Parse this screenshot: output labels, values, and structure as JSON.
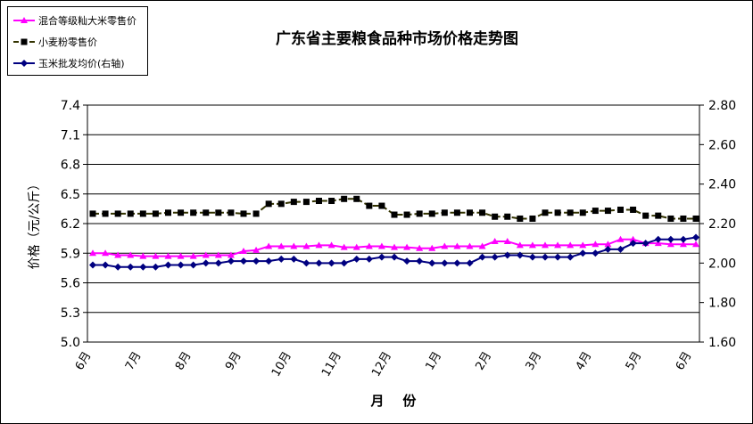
{
  "chart_data": {
    "type": "line",
    "title": "广东省主要粮食品种市场价格走势图",
    "xlabel": "月    份",
    "ylabel": "价格（元/公斤）",
    "ylim": [
      5.0,
      7.4
    ],
    "y2lim": [
      1.6,
      2.8
    ],
    "yticks": [
      "5.0",
      "5.3",
      "5.6",
      "5.9",
      "6.2",
      "6.5",
      "6.8",
      "7.1",
      "7.4"
    ],
    "y2ticks": [
      "1.60",
      "1.80",
      "2.00",
      "2.20",
      "2.40",
      "2.60",
      "2.80"
    ],
    "month_labels": [
      "6月",
      "7月",
      "8月",
      "9月",
      "10月",
      "11月",
      "12月",
      "1月",
      "2月",
      "3月",
      "4月",
      "5月",
      "6月"
    ],
    "grid": true,
    "legend_position": "top-left",
    "series": [
      {
        "name": "混合等级籼大米零售价",
        "axis": "left",
        "color": "#ff00ff",
        "marker": "triangle",
        "values": [
          5.9,
          5.9,
          5.88,
          5.88,
          5.87,
          5.87,
          5.87,
          5.87,
          5.87,
          5.88,
          5.88,
          5.88,
          5.92,
          5.93,
          5.97,
          5.97,
          5.97,
          5.97,
          5.98,
          5.98,
          5.96,
          5.96,
          5.97,
          5.97,
          5.96,
          5.96,
          5.95,
          5.95,
          5.97,
          5.97,
          5.97,
          5.97,
          6.02,
          6.02,
          5.98,
          5.98,
          5.98,
          5.98,
          5.98,
          5.98,
          5.99,
          5.99,
          6.04,
          6.04,
          6.0,
          6.0,
          5.99,
          5.99,
          5.99
        ]
      },
      {
        "name": "小麦粉零售价",
        "axis": "left",
        "color": "#333300",
        "marker": "square",
        "values": [
          6.3,
          6.3,
          6.3,
          6.3,
          6.3,
          6.3,
          6.31,
          6.31,
          6.31,
          6.31,
          6.31,
          6.31,
          6.3,
          6.3,
          6.4,
          6.4,
          6.42,
          6.42,
          6.43,
          6.43,
          6.45,
          6.45,
          6.38,
          6.38,
          6.29,
          6.29,
          6.3,
          6.3,
          6.31,
          6.31,
          6.31,
          6.31,
          6.27,
          6.27,
          6.25,
          6.25,
          6.31,
          6.31,
          6.31,
          6.31,
          6.33,
          6.33,
          6.34,
          6.34,
          6.28,
          6.28,
          6.25,
          6.25,
          6.25
        ]
      },
      {
        "name": "玉米批发均价(右轴)",
        "axis": "right",
        "color": "#000080",
        "marker": "diamond",
        "values": [
          1.99,
          1.99,
          1.98,
          1.98,
          1.98,
          1.98,
          1.99,
          1.99,
          1.99,
          2.0,
          2.0,
          2.01,
          2.01,
          2.01,
          2.01,
          2.02,
          2.02,
          2.0,
          2.0,
          2.0,
          2.0,
          2.02,
          2.02,
          2.03,
          2.03,
          2.01,
          2.01,
          2.0,
          2.0,
          2.0,
          2.0,
          2.03,
          2.03,
          2.04,
          2.04,
          2.03,
          2.03,
          2.03,
          2.03,
          2.05,
          2.05,
          2.07,
          2.07,
          2.1,
          2.1,
          2.12,
          2.12,
          2.12,
          2.13
        ]
      }
    ]
  }
}
